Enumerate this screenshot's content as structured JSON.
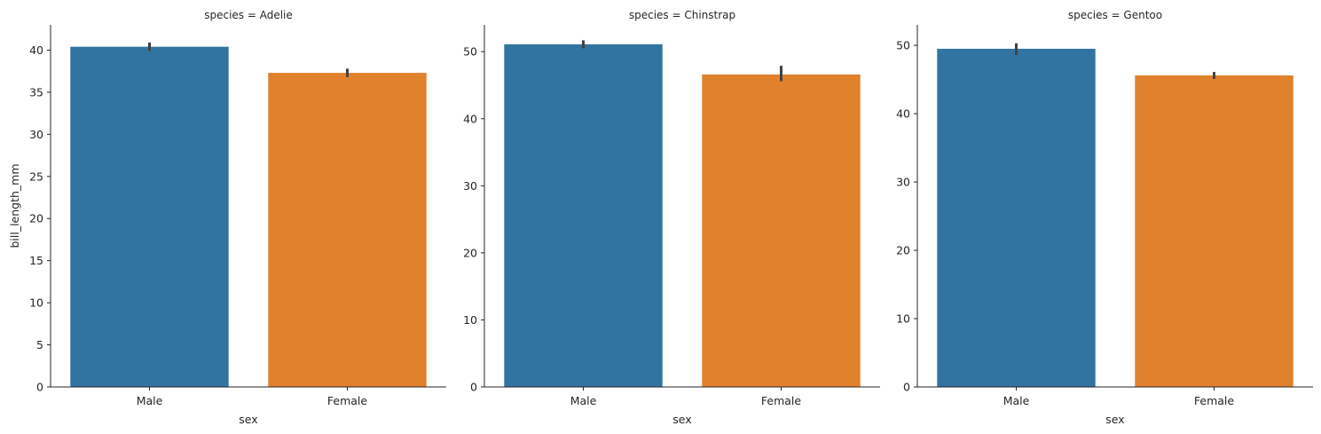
{
  "chart_data": [
    {
      "type": "bar",
      "title": "species = Adelie",
      "xlabel": "sex",
      "ylabel": "bill_length_mm",
      "categories": [
        "Male",
        "Female"
      ],
      "values": [
        40.4,
        37.3
      ],
      "error_bars": [
        [
          39.9,
          40.9
        ],
        [
          36.8,
          37.8
        ]
      ],
      "ylim": [
        0,
        43
      ],
      "yticks": [
        0,
        5,
        10,
        15,
        20,
        25,
        30,
        35,
        40
      ],
      "colors": [
        "#3274a1",
        "#e1812c"
      ]
    },
    {
      "type": "bar",
      "title": "species = Chinstrap",
      "xlabel": "sex",
      "ylabel": "",
      "categories": [
        "Male",
        "Female"
      ],
      "values": [
        51.1,
        46.6
      ],
      "error_bars": [
        [
          50.5,
          51.7
        ],
        [
          45.6,
          47.9
        ]
      ],
      "ylim": [
        0,
        54
      ],
      "yticks": [
        0,
        10,
        20,
        30,
        40,
        50
      ],
      "colors": [
        "#3274a1",
        "#e1812c"
      ]
    },
    {
      "type": "bar",
      "title": "species = Gentoo",
      "xlabel": "sex",
      "ylabel": "",
      "categories": [
        "Male",
        "Female"
      ],
      "values": [
        49.5,
        45.6
      ],
      "error_bars": [
        [
          48.6,
          50.3
        ],
        [
          45.1,
          46.1
        ]
      ],
      "ylim": [
        0,
        53
      ],
      "yticks": [
        0,
        10,
        20,
        30,
        40,
        50
      ],
      "colors": [
        "#3274a1",
        "#e1812c"
      ]
    }
  ]
}
